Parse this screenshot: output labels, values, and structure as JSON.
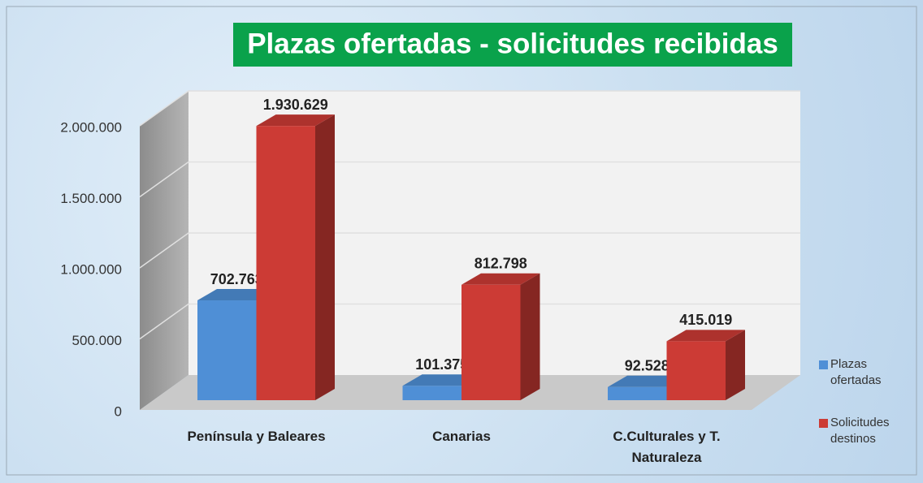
{
  "chart_data": {
    "type": "bar3d",
    "title": "Plazas ofertadas - solicitudes recibidas",
    "categories": [
      "Península y Baleares",
      "Canarias",
      "C.Culturales y T. Naturaleza"
    ],
    "series": [
      {
        "name": "Plazas ofertadas",
        "color": "#4f8fd6",
        "values": [
          702763,
          101375,
          92528
        ],
        "value_labels": [
          "702.763",
          "101.375",
          "92.528"
        ]
      },
      {
        "name": "Solicitudes destinos",
        "color": "#cc3b35",
        "values": [
          1930629,
          812798,
          415019
        ],
        "value_labels": [
          "1.930.629",
          "812.798",
          "415.019"
        ]
      }
    ],
    "ylim": [
      0,
      2000000
    ],
    "yticks": [
      0,
      {
        "value": 500000,
        "label": "500.000"
      },
      {
        "value": 1000000,
        "label": "1.000.000"
      },
      {
        "value": 1500000,
        "label": "1.500.000"
      },
      {
        "value": 2000000,
        "label": "2.000.000"
      }
    ],
    "grid": true,
    "legend": "right"
  }
}
